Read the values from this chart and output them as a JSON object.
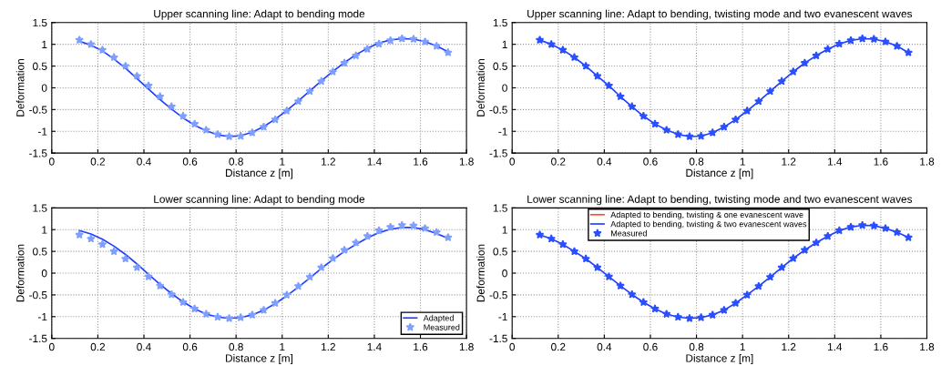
{
  "chart_data": [
    {
      "type": "line",
      "title": "Upper scanning line: Adapt to bending mode",
      "xlabel": "Distance z [m]",
      "ylabel": "Deformation",
      "x": [
        0.12,
        0.17,
        0.22,
        0.27,
        0.32,
        0.37,
        0.42,
        0.47,
        0.52,
        0.57,
        0.62,
        0.67,
        0.72,
        0.77,
        0.82,
        0.87,
        0.92,
        0.97,
        1.02,
        1.07,
        1.12,
        1.17,
        1.22,
        1.27,
        1.32,
        1.37,
        1.42,
        1.47,
        1.52,
        1.57,
        1.62,
        1.67,
        1.72
      ],
      "series": [
        {
          "color": "#1f3fff",
          "marker": "none",
          "values": [
            1.07,
            0.98,
            0.85,
            0.66,
            0.45,
            0.21,
            -0.03,
            -0.27,
            -0.49,
            -0.69,
            -0.86,
            -0.99,
            -1.08,
            -1.12,
            -1.1,
            -1.02,
            -0.89,
            -0.72,
            -0.52,
            -0.3,
            -0.07,
            0.16,
            0.38,
            0.58,
            0.76,
            0.91,
            1.03,
            1.1,
            1.13,
            1.12,
            1.06,
            0.96,
            0.83
          ]
        },
        {
          "type": "scatter",
          "color": "#7f9fff",
          "marker": "star",
          "values": [
            1.1,
            1.0,
            0.87,
            0.7,
            0.5,
            0.27,
            0.05,
            -0.2,
            -0.43,
            -0.65,
            -0.83,
            -0.97,
            -1.07,
            -1.12,
            -1.11,
            -1.03,
            -0.9,
            -0.73,
            -0.53,
            -0.31,
            -0.08,
            0.15,
            0.37,
            0.57,
            0.74,
            0.89,
            1.01,
            1.09,
            1.13,
            1.12,
            1.06,
            0.96,
            0.81
          ]
        }
      ],
      "xlim": [
        0,
        1.8
      ],
      "xticks": [
        0,
        0.2,
        0.4,
        0.6,
        0.8,
        1,
        1.2,
        1.4,
        1.6,
        1.8
      ],
      "ylim": [
        -1.5,
        1.5
      ],
      "yticks": [
        -1.5,
        -1,
        -0.5,
        0,
        0.5,
        1,
        1.5
      ],
      "grid": true,
      "line_style": "solid"
    },
    {
      "type": "line",
      "title": "Upper scanning line: Adapt to bending, twisting mode and two evanescent waves",
      "xlabel": "Distance z [m]",
      "ylabel": "Deformation",
      "x": [
        0.12,
        0.17,
        0.22,
        0.27,
        0.32,
        0.37,
        0.42,
        0.47,
        0.52,
        0.57,
        0.62,
        0.67,
        0.72,
        0.77,
        0.82,
        0.87,
        0.92,
        0.97,
        1.02,
        1.07,
        1.12,
        1.17,
        1.22,
        1.27,
        1.32,
        1.37,
        1.42,
        1.47,
        1.52,
        1.57,
        1.62,
        1.67,
        1.72
      ],
      "series": [
        {
          "color": "#1f3fff",
          "marker": "none",
          "values": [
            1.1,
            1.0,
            0.87,
            0.7,
            0.5,
            0.27,
            0.05,
            -0.2,
            -0.43,
            -0.65,
            -0.83,
            -0.97,
            -1.07,
            -1.12,
            -1.11,
            -1.03,
            -0.9,
            -0.73,
            -0.53,
            -0.31,
            -0.08,
            0.15,
            0.37,
            0.57,
            0.74,
            0.89,
            1.01,
            1.09,
            1.13,
            1.12,
            1.06,
            0.96,
            0.81
          ]
        },
        {
          "type": "scatter",
          "color": "#2a4fff",
          "marker": "star",
          "values": [
            1.1,
            1.0,
            0.87,
            0.7,
            0.5,
            0.27,
            0.05,
            -0.2,
            -0.43,
            -0.65,
            -0.83,
            -0.97,
            -1.07,
            -1.12,
            -1.11,
            -1.03,
            -0.9,
            -0.73,
            -0.53,
            -0.31,
            -0.08,
            0.15,
            0.37,
            0.57,
            0.74,
            0.89,
            1.01,
            1.09,
            1.13,
            1.12,
            1.06,
            0.96,
            0.81
          ]
        }
      ],
      "xlim": [
        0,
        1.8
      ],
      "xticks": [
        0,
        0.2,
        0.4,
        0.6,
        0.8,
        1,
        1.2,
        1.4,
        1.6,
        1.8
      ],
      "ylim": [
        -1.5,
        1.5
      ],
      "yticks": [
        -1.5,
        -1,
        -0.5,
        0,
        0.5,
        1,
        1.5
      ],
      "grid": true,
      "line_style": "solid"
    },
    {
      "type": "line",
      "title": "Lower scanning line: Adapt to bending mode",
      "xlabel": "Distance z [m]",
      "ylabel": "Deformation",
      "x": [
        0.12,
        0.17,
        0.22,
        0.27,
        0.32,
        0.37,
        0.42,
        0.47,
        0.52,
        0.57,
        0.62,
        0.67,
        0.72,
        0.77,
        0.82,
        0.87,
        0.92,
        0.97,
        1.02,
        1.07,
        1.12,
        1.17,
        1.22,
        1.27,
        1.32,
        1.37,
        1.42,
        1.47,
        1.52,
        1.57,
        1.62,
        1.67,
        1.72
      ],
      "series": [
        {
          "name": "Adapted",
          "color": "#1f3fff",
          "marker": "none",
          "values": [
            0.98,
            0.9,
            0.78,
            0.62,
            0.43,
            0.21,
            -0.03,
            -0.26,
            -0.47,
            -0.66,
            -0.82,
            -0.94,
            -1.01,
            -1.04,
            -1.02,
            -0.96,
            -0.85,
            -0.7,
            -0.52,
            -0.32,
            -0.11,
            0.11,
            0.31,
            0.5,
            0.66,
            0.81,
            0.93,
            1.01,
            1.05,
            1.05,
            1.0,
            0.91,
            0.8
          ]
        },
        {
          "name": "Measured",
          "type": "scatter",
          "color": "#7f9fff",
          "marker": "star",
          "values": [
            0.88,
            0.79,
            0.66,
            0.5,
            0.33,
            0.13,
            -0.08,
            -0.29,
            -0.49,
            -0.67,
            -0.82,
            -0.94,
            -1.01,
            -1.04,
            -1.02,
            -0.96,
            -0.85,
            -0.69,
            -0.5,
            -0.3,
            -0.09,
            0.13,
            0.34,
            0.53,
            0.7,
            0.85,
            0.98,
            1.06,
            1.1,
            1.09,
            1.03,
            0.94,
            0.82
          ]
        }
      ],
      "xlim": [
        0,
        1.8
      ],
      "xticks": [
        0,
        0.2,
        0.4,
        0.6,
        0.8,
        1,
        1.2,
        1.4,
        1.6,
        1.8
      ],
      "ylim": [
        -1.5,
        1.5
      ],
      "yticks": [
        -1.5,
        -1,
        -0.5,
        0,
        0.5,
        1,
        1.5
      ],
      "grid": true,
      "legend": "bottom right",
      "line_style": "solid"
    },
    {
      "type": "line",
      "title": "Lower scanning line: Adapt to bending, twisting mode and two evanescent waves",
      "xlabel": "Distance z [m]",
      "ylabel": "Deformation",
      "x": [
        0.12,
        0.17,
        0.22,
        0.27,
        0.32,
        0.37,
        0.42,
        0.47,
        0.52,
        0.57,
        0.62,
        0.67,
        0.72,
        0.77,
        0.82,
        0.87,
        0.92,
        0.97,
        1.02,
        1.07,
        1.12,
        1.17,
        1.22,
        1.27,
        1.32,
        1.37,
        1.42,
        1.47,
        1.52,
        1.57,
        1.62,
        1.67,
        1.72
      ],
      "series": [
        {
          "name": "Adapted to bending, twisting & one evanescent wave",
          "color": "#ff4a2a",
          "marker": "none",
          "values": [
            null,
            null,
            null,
            null,
            null,
            null,
            null,
            null,
            null,
            null,
            null,
            null,
            null,
            null,
            null,
            null,
            null,
            null,
            null,
            null,
            null,
            null,
            null,
            null,
            null,
            null,
            null,
            null,
            null,
            null,
            null,
            null,
            null
          ]
        },
        {
          "name": "Adapted to bending, twisting & two evanescent waves",
          "color": "#1f3fff",
          "marker": "none",
          "values": [
            0.88,
            0.79,
            0.66,
            0.5,
            0.33,
            0.13,
            -0.08,
            -0.29,
            -0.49,
            -0.67,
            -0.82,
            -0.94,
            -1.01,
            -1.04,
            -1.02,
            -0.96,
            -0.85,
            -0.69,
            -0.5,
            -0.3,
            -0.09,
            0.13,
            0.34,
            0.53,
            0.7,
            0.85,
            0.98,
            1.06,
            1.1,
            1.09,
            1.03,
            0.94,
            0.82
          ]
        },
        {
          "name": "Measured",
          "type": "scatter",
          "color": "#2a4fff",
          "marker": "star",
          "values": [
            0.88,
            0.79,
            0.66,
            0.5,
            0.33,
            0.13,
            -0.08,
            -0.29,
            -0.49,
            -0.67,
            -0.82,
            -0.94,
            -1.01,
            -1.04,
            -1.02,
            -0.96,
            -0.85,
            -0.69,
            -0.5,
            -0.3,
            -0.09,
            0.13,
            0.34,
            0.53,
            0.7,
            0.85,
            0.98,
            1.06,
            1.1,
            1.09,
            1.03,
            0.94,
            0.82
          ]
        }
      ],
      "xlim": [
        0,
        1.8
      ],
      "xticks": [
        0,
        0.2,
        0.4,
        0.6,
        0.8,
        1,
        1.2,
        1.4,
        1.6,
        1.8
      ],
      "ylim": [
        -1.5,
        1.5
      ],
      "yticks": [
        -1.5,
        -1,
        -0.5,
        0,
        0.5,
        1,
        1.5
      ],
      "grid": true,
      "legend": "top",
      "line_style": "solid"
    }
  ]
}
